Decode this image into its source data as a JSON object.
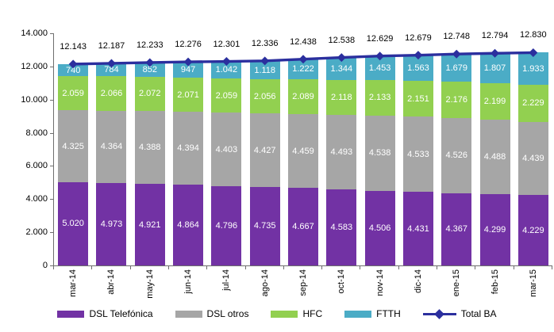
{
  "chart_data": {
    "type": "bar",
    "subtype": "stacked-bars-with-line-overlay",
    "categories": [
      "mar-14",
      "abr-14",
      "may-14",
      "jun-14",
      "jul-14",
      "ago-14",
      "sep-14",
      "oct-14",
      "nov-14",
      "dic-14",
      "ene-15",
      "feb-15",
      "mar-15"
    ],
    "series": [
      {
        "name": "DSL Telefónica",
        "color": "#7232A4",
        "values": [
          5020,
          4973,
          4921,
          4864,
          4796,
          4735,
          4667,
          4583,
          4506,
          4431,
          4367,
          4299,
          4229
        ]
      },
      {
        "name": "DSL otros",
        "color": "#A6A6A6",
        "values": [
          4325,
          4364,
          4388,
          4394,
          4403,
          4427,
          4459,
          4493,
          4538,
          4533,
          4526,
          4488,
          4439
        ]
      },
      {
        "name": "HFC",
        "color": "#92D050",
        "values": [
          2059,
          2066,
          2072,
          2071,
          2059,
          2056,
          2089,
          2118,
          2133,
          2151,
          2176,
          2199,
          2229
        ]
      },
      {
        "name": "FTTH",
        "color": "#4BACC6",
        "values": [
          740,
          784,
          852,
          947,
          1042,
          1118,
          1222,
          1344,
          1453,
          1563,
          1679,
          1807,
          1933
        ]
      }
    ],
    "line_series": {
      "name": "Total BA",
      "color": "#2B2F9E",
      "values": [
        12143,
        12187,
        12233,
        12276,
        12301,
        12336,
        12438,
        12538,
        12629,
        12679,
        12748,
        12794,
        12830
      ]
    },
    "y_ticks": [
      "14.000",
      "12.000",
      "10.000",
      "8.000",
      "6.000",
      "4.000",
      "2.000",
      "0"
    ],
    "y_tick_values": [
      14000,
      12000,
      10000,
      8000,
      6000,
      4000,
      2000,
      0
    ],
    "ylim": [
      0,
      14000
    ],
    "grid": "off",
    "legend_position": "bottom",
    "value_label_color": "#ffffff",
    "total_label_color": "#000000",
    "axis_color": "#6e6e6e",
    "number_format": "thousands-dot"
  }
}
